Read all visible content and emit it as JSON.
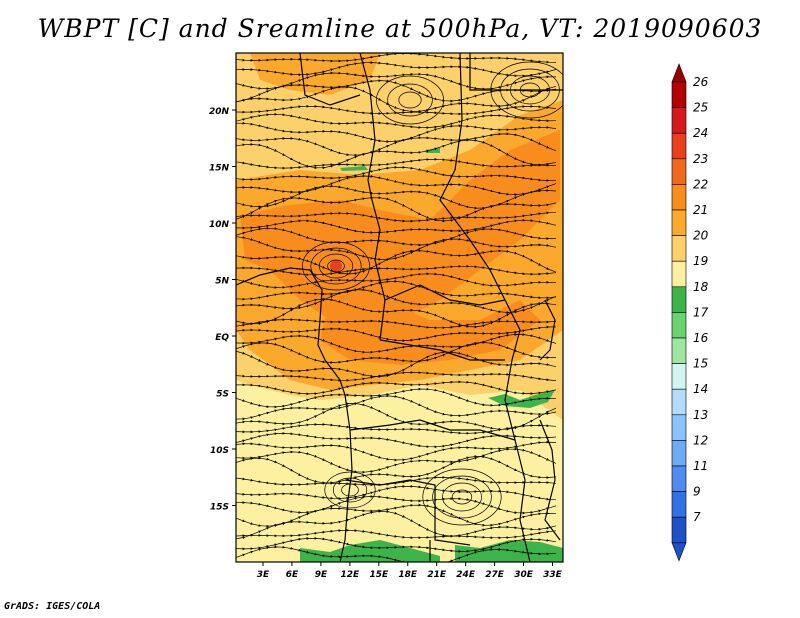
{
  "title": "WBPT [C] and Sreamline at 500hPa, VT: 2019090603",
  "footer": "GrADS: IGES/COLA",
  "map": {
    "lat_labels": [
      "20N",
      "15N",
      "10N",
      "5N",
      "EQ",
      "5S",
      "10S",
      "15S"
    ],
    "lon_labels": [
      "3E",
      "6E",
      "9E",
      "12E",
      "15E",
      "18E",
      "21E",
      "24E",
      "27E",
      "30E",
      "33E"
    ],
    "lat_values": [
      20,
      15,
      10,
      5,
      0,
      -5,
      -10,
      -15
    ],
    "lon_values": [
      3,
      6,
      9,
      12,
      15,
      18,
      21,
      24,
      27,
      30,
      33
    ]
  },
  "colorbar": {
    "labels": [
      "26",
      "25",
      "24",
      "23",
      "22",
      "21",
      "20",
      "19",
      "18",
      "17",
      "16",
      "15",
      "14",
      "13",
      "12",
      "11",
      "9",
      "7"
    ],
    "colors": [
      "#b40000",
      "#d7191c",
      "#e8401c",
      "#f06a1e",
      "#f88d1e",
      "#fba92c",
      "#fcd06a",
      "#fdf0a0",
      "#3cb44a",
      "#6ad26e",
      "#a0e6a0",
      "#d2f5f0",
      "#b4dcff",
      "#8cc3ff",
      "#6eaaf5",
      "#508cf0",
      "#3270e6",
      "#1e50c8"
    ],
    "top_arrow_color": "#9b0000",
    "bottom_arrow_color": "#1e50c8"
  },
  "field_colors": {
    "c19": "#fdf0a0",
    "c20": "#fcd06a",
    "c21": "#fba92c",
    "c22": "#f88d1e",
    "green": "#3cb44a"
  }
}
